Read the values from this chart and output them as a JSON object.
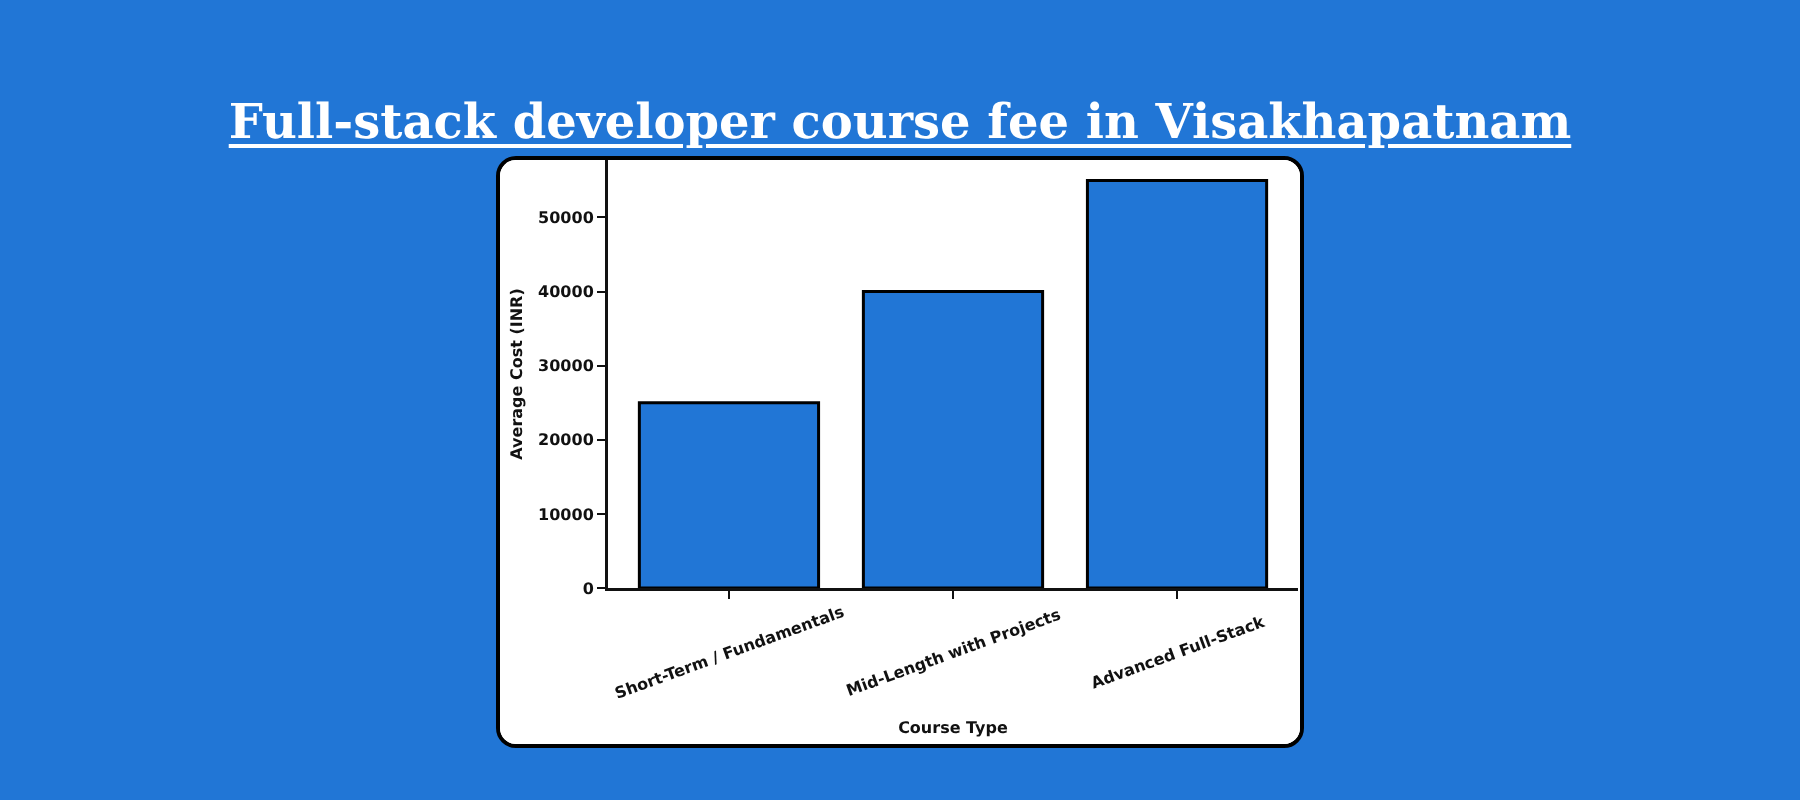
{
  "chart_data": {
    "type": "bar",
    "title": "Full-stack developer course fee in Visakhapatnam",
    "xlabel": "Course Type",
    "ylabel": "Average Cost (INR)",
    "categories": [
      "Short-Term / Fundamentals",
      "Mid-Length with Projects",
      "Advanced Full-Stack"
    ],
    "values": [
      25000,
      40000,
      55000
    ],
    "color": "#2176d6",
    "ylim": [
      0,
      57750
    ],
    "yticks": [
      0,
      10000,
      20000,
      30000,
      40000,
      50000
    ]
  }
}
